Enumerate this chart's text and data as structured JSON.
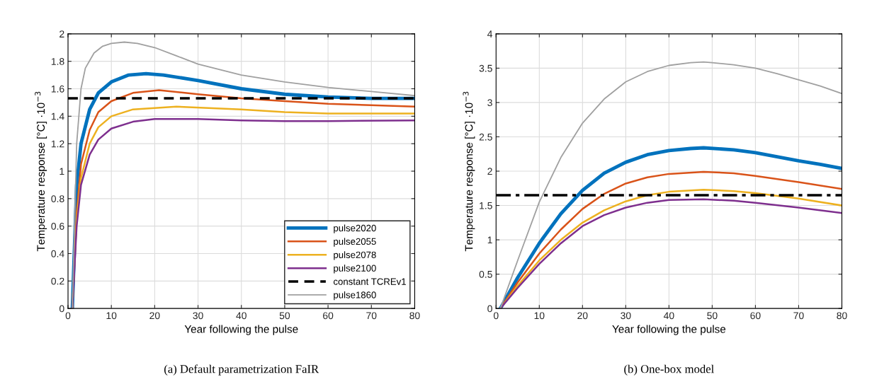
{
  "chart_data": [
    {
      "type": "line",
      "xlabel": "Year following the pulse",
      "ylabel": "Temperature response [°C] ·10$^{−3}$",
      "xlim": [
        0,
        80
      ],
      "ylim": [
        0,
        2
      ],
      "xticks": [
        0,
        10,
        20,
        30,
        40,
        50,
        60,
        70,
        80
      ],
      "yticks": [
        0,
        0.2,
        0.4,
        0.6,
        0.8,
        1,
        1.2,
        1.4,
        1.6,
        1.8,
        2
      ],
      "grid": true,
      "legend": "bottom right",
      "line_style": "solid",
      "annotations": [
        "(a) Default parametrization FaIR"
      ],
      "series": [
        {
          "name": "pulse2020",
          "color": "#0072bd",
          "x": [
            1,
            2,
            3,
            5,
            7,
            10,
            14,
            18,
            22,
            30,
            40,
            50,
            60,
            70,
            80
          ],
          "values": [
            0,
            0.9,
            1.2,
            1.45,
            1.57,
            1.65,
            1.7,
            1.71,
            1.7,
            1.66,
            1.6,
            1.56,
            1.54,
            1.53,
            1.53
          ]
        },
        {
          "name": "pulse2055",
          "color": "#d95319",
          "x": [
            1,
            2,
            3,
            5,
            7,
            10,
            15,
            21,
            30,
            40,
            50,
            60,
            70,
            80
          ],
          "values": [
            0,
            0.7,
            1.05,
            1.3,
            1.43,
            1.51,
            1.57,
            1.59,
            1.56,
            1.53,
            1.51,
            1.49,
            1.48,
            1.47
          ]
        },
        {
          "name": "pulse2078",
          "color": "#edb120",
          "x": [
            1,
            2,
            3,
            5,
            7,
            10,
            15,
            25,
            40,
            50,
            60,
            80
          ],
          "values": [
            0,
            0.65,
            0.95,
            1.2,
            1.32,
            1.4,
            1.45,
            1.47,
            1.45,
            1.43,
            1.42,
            1.42
          ]
        },
        {
          "name": "pulse2100",
          "color": "#7e2f8e",
          "x": [
            1,
            2,
            3,
            5,
            7,
            10,
            15,
            20,
            30,
            40,
            50,
            60,
            80
          ],
          "values": [
            0,
            0.6,
            0.9,
            1.12,
            1.23,
            1.31,
            1.36,
            1.38,
            1.38,
            1.37,
            1.365,
            1.365,
            1.37
          ]
        },
        {
          "name": "constant TCREv1",
          "color": "#000000",
          "line_style": "dashed",
          "x": [
            0,
            80
          ],
          "values": [
            1.53,
            1.53
          ]
        },
        {
          "name": "pulse1860",
          "color": "#a0a0a0",
          "x": [
            1,
            1.5,
            2,
            3,
            4,
            6,
            8,
            10,
            13,
            16,
            20,
            25,
            30,
            35,
            40,
            50,
            60,
            70,
            80
          ],
          "values": [
            0,
            0.6,
            1.2,
            1.6,
            1.75,
            1.86,
            1.91,
            1.93,
            1.94,
            1.93,
            1.9,
            1.84,
            1.78,
            1.74,
            1.7,
            1.65,
            1.61,
            1.58,
            1.55
          ]
        }
      ]
    },
    {
      "type": "line",
      "xlabel": "Year following the pulse",
      "ylabel": "Temperature response [°C] ·10$^{−3}$",
      "xlim": [
        0,
        80
      ],
      "ylim": [
        0,
        4
      ],
      "xticks": [
        0,
        10,
        20,
        30,
        40,
        50,
        60,
        70,
        80
      ],
      "yticks": [
        0,
        0.5,
        1,
        1.5,
        2,
        2.5,
        3,
        3.5,
        4
      ],
      "grid": true,
      "line_style": "solid",
      "annotations": [
        "(b) One-box model"
      ],
      "ref_lines": [
        {
          "axis": "y",
          "value": 1.65,
          "color": "#000000",
          "line_style": "dashdot"
        }
      ],
      "series": [
        {
          "color": "#0072bd",
          "x": [
            1,
            5,
            10,
            15,
            20,
            25,
            30,
            35,
            40,
            45,
            48,
            55,
            60,
            65,
            70,
            75,
            80
          ],
          "values": [
            0,
            0.45,
            0.95,
            1.38,
            1.72,
            1.97,
            2.13,
            2.24,
            2.3,
            2.33,
            2.34,
            2.31,
            2.27,
            2.21,
            2.15,
            2.1,
            2.04
          ]
        },
        {
          "color": "#d95319",
          "x": [
            1,
            5,
            10,
            15,
            20,
            25,
            30,
            35,
            40,
            48,
            55,
            60,
            70,
            80
          ],
          "values": [
            0,
            0.38,
            0.8,
            1.15,
            1.45,
            1.67,
            1.82,
            1.91,
            1.96,
            1.99,
            1.97,
            1.93,
            1.84,
            1.74
          ]
        },
        {
          "color": "#edb120",
          "x": [
            1,
            5,
            10,
            15,
            20,
            25,
            30,
            35,
            40,
            48,
            55,
            60,
            70,
            80
          ],
          "values": [
            0,
            0.33,
            0.7,
            1.0,
            1.25,
            1.43,
            1.56,
            1.65,
            1.7,
            1.73,
            1.71,
            1.68,
            1.6,
            1.5
          ]
        },
        {
          "color": "#7e2f8e",
          "x": [
            1,
            5,
            10,
            15,
            20,
            25,
            30,
            35,
            40,
            48,
            55,
            60,
            70,
            80
          ],
          "values": [
            0,
            0.3,
            0.65,
            0.95,
            1.2,
            1.36,
            1.47,
            1.54,
            1.58,
            1.59,
            1.57,
            1.54,
            1.47,
            1.39
          ]
        },
        {
          "color": "#a0a0a0",
          "x": [
            1,
            5,
            10,
            15,
            20,
            25,
            30,
            35,
            40,
            45,
            48,
            50,
            55,
            60,
            65,
            70,
            75,
            80
          ],
          "values": [
            0,
            0.7,
            1.55,
            2.2,
            2.7,
            3.05,
            3.3,
            3.45,
            3.54,
            3.58,
            3.59,
            3.58,
            3.55,
            3.5,
            3.42,
            3.33,
            3.24,
            3.13
          ]
        }
      ]
    }
  ]
}
